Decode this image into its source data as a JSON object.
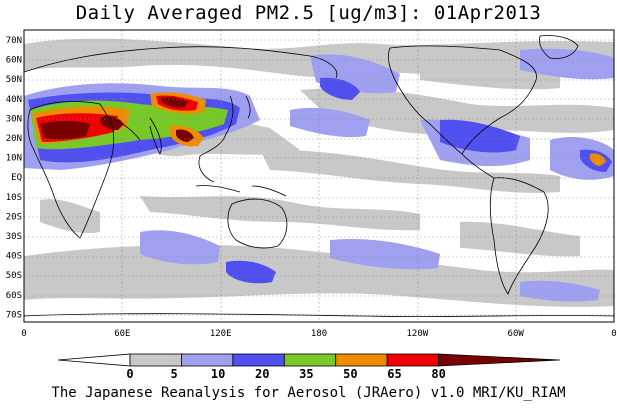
{
  "title": "Daily Averaged PM2.5 [ug/m3]: 01Apr2013",
  "credit": "The Japanese Reanalysis for Aerosol (JRAero) v1.0 MRI/KU_RIAM",
  "map": {
    "projection": "equirectangular",
    "lon_range": [
      0,
      360
    ],
    "lat_range": [
      -73,
      75
    ],
    "gridlines": "dotted",
    "coastlines": true
  },
  "axes": {
    "y_ticks": [
      "70N",
      "60N",
      "50N",
      "40N",
      "30N",
      "20N",
      "10N",
      "EQ",
      "10S",
      "20S",
      "30S",
      "40S",
      "50S",
      "60S",
      "70S"
    ],
    "x_ticks": [
      "0",
      "60E",
      "120E",
      "180",
      "120W",
      "60W",
      "0"
    ]
  },
  "colorbar": {
    "levels": [
      "0",
      "5",
      "10",
      "20",
      "35",
      "50",
      "65",
      "80"
    ],
    "colors": [
      "#ffffff",
      "#c8c8c8",
      "#a0a0f0",
      "#5050f0",
      "#78c828",
      "#f08c00",
      "#f00000",
      "#780000"
    ]
  },
  "colors": {
    "band_5": "#c8c8c8",
    "band_10": "#a0a0f0",
    "band_20": "#5050f0",
    "band_35": "#78c828",
    "band_50": "#f08c00",
    "band_65": "#f00000",
    "band_80": "#780000"
  }
}
